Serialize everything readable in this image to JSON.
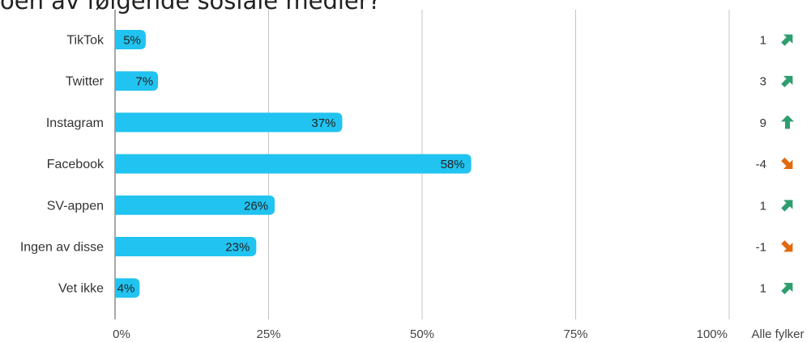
{
  "title": "oen av følgende sosiale medier?",
  "chart_data": {
    "type": "bar",
    "orientation": "horizontal",
    "title": "oen av følgende sosiale medier?",
    "categories": [
      "TikTok",
      "Twitter",
      "Instagram",
      "Facebook",
      "SV-appen",
      "Ingen av disse",
      "Vet ikke"
    ],
    "values": [
      5,
      7,
      37,
      58,
      26,
      23,
      4
    ],
    "value_labels": [
      "5%",
      "7%",
      "37%",
      "58%",
      "26%",
      "23%",
      "4%"
    ],
    "xlim": [
      0,
      100
    ],
    "x_ticks": [
      0,
      25,
      50,
      75,
      100
    ],
    "x_tick_labels": [
      "0%",
      "25%",
      "50%",
      "75%",
      "100%"
    ],
    "grid": true,
    "bar_color": "#21c3f0",
    "change_header": "Alle fylker",
    "changes": [
      {
        "value": 1,
        "label": "1",
        "direction": "up-right"
      },
      {
        "value": 3,
        "label": "3",
        "direction": "up-right"
      },
      {
        "value": 9,
        "label": "9",
        "direction": "up"
      },
      {
        "value": -4,
        "label": "-4",
        "direction": "down-right"
      },
      {
        "value": 1,
        "label": "1",
        "direction": "up-right"
      },
      {
        "value": -1,
        "label": "-1",
        "direction": "down-right"
      },
      {
        "value": 1,
        "label": "1",
        "direction": "up-right"
      }
    ],
    "up_color": "#2e9e6e",
    "down_color": "#e06a0e"
  }
}
